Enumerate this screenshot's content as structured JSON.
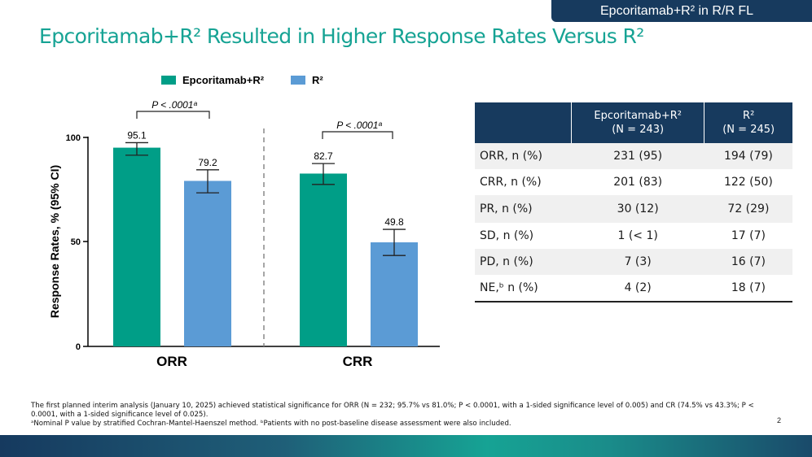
{
  "header": {
    "tag": "Epcoritamab+R² in R/R FL",
    "title": "Epcoritamab+R² Resulted in Higher Response Rates Versus R²"
  },
  "colors": {
    "teal": "#009e87",
    "blue": "#5b9bd5",
    "navy": "#173a5e"
  },
  "chart_data": {
    "type": "bar",
    "categories": [
      "ORR",
      "CRR"
    ],
    "series": [
      {
        "name": "Epcoritamab+R²",
        "values": [
          95.1,
          82.7
        ],
        "ci_low": [
          91.5,
          77.5
        ],
        "ci_high": [
          97.5,
          87.5
        ]
      },
      {
        "name": "R²",
        "values": [
          79.2,
          49.8
        ],
        "ci_low": [
          73.5,
          43.5
        ],
        "ci_high": [
          84.5,
          56.0
        ]
      }
    ],
    "data_labels": [
      "95.1",
      "82.7",
      "79.2",
      "49.8"
    ],
    "ylabel": "Response Rates, % (95% CI)",
    "ylim": [
      0,
      100
    ],
    "yticks": [
      "0",
      "50",
      "100"
    ],
    "annotations": [
      "P < .0001ᵃ",
      "P < .0001ᵃ"
    ],
    "legend_position": "top"
  },
  "table": {
    "headers": [
      "",
      "Epcoritamab+R²\n(N = 243)",
      "R²\n(N = 245)"
    ],
    "rows": [
      [
        "ORR, n (%)",
        "231 (95)",
        "194 (79)"
      ],
      [
        "CRR, n (%)",
        "201 (83)",
        "122 (50)"
      ],
      [
        "PR, n (%)",
        "30 (12)",
        "72 (29)"
      ],
      [
        "SD, n (%)",
        "1 (< 1)",
        "17 (7)"
      ],
      [
        "PD, n (%)",
        "7 (3)",
        "16 (7)"
      ],
      [
        "NE,ᵇ n (%)",
        "4 (2)",
        "18 (7)"
      ]
    ]
  },
  "footnotes": {
    "line1": "The first planned interim analysis (January 10, 2025) achieved statistical significance for ORR (N = 232; 95.7% vs 81.0%; P < 0.0001, with a 1-sided significance level of 0.005) and CR (74.5% vs 43.3%; P < 0.0001, with a 1-sided significance level of 0.025).",
    "line2": "ᵃNominal P value by stratified Cochran-Mantel-Haenszel method. ᵇPatients with no post-baseline disease assessment were also included."
  },
  "page_number": "2"
}
